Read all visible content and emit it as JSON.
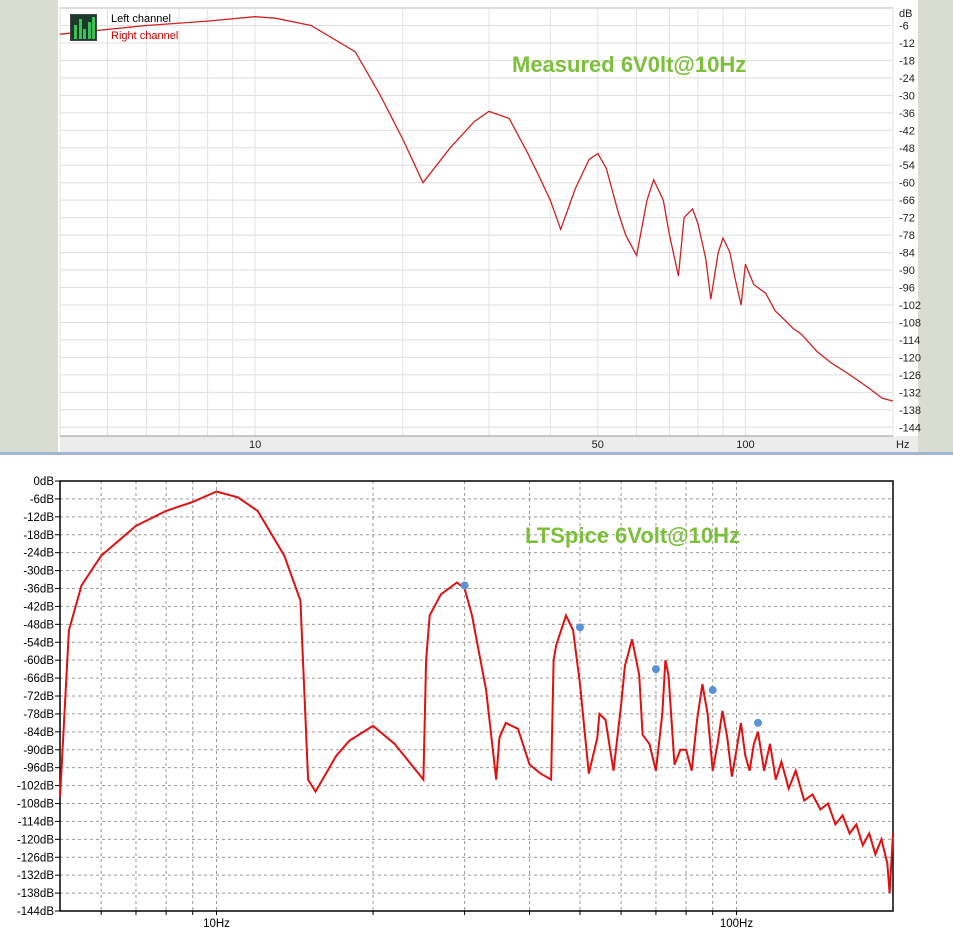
{
  "chart_data": [
    {
      "type": "line",
      "title": "Measured 6V0lt@10Hz",
      "legend": [
        "Left channel",
        "Right channel"
      ],
      "legend_colors": [
        "#000000",
        "#cc0000"
      ],
      "series_color": "#cc2222",
      "unit_y": "dB",
      "unit_x": "Hz",
      "x_scale": "log",
      "xlim": [
        4,
        200
      ],
      "ylim": [
        -147,
        0
      ],
      "x_tick_labels": [
        "10",
        "50",
        "100"
      ],
      "y_tick_labels": [
        "-6",
        "-12",
        "-18",
        "-24",
        "-30",
        "-36",
        "-42",
        "-48",
        "-54",
        "-60",
        "-66",
        "-72",
        "-78",
        "-84",
        "-90",
        "-96",
        "-102",
        "-108",
        "-114",
        "-120",
        "-126",
        "-132",
        "-138",
        "-144"
      ],
      "grid": true,
      "series": [
        {
          "name": "Right channel",
          "x": [
            4,
            6,
            8,
            10,
            11,
            13,
            16,
            18,
            20,
            22,
            25,
            28,
            30,
            33,
            36,
            38,
            40,
            42,
            45,
            48,
            50,
            52,
            55,
            57,
            60,
            63,
            65,
            68,
            70,
            73,
            75,
            78,
            80,
            83,
            85,
            88,
            90,
            93,
            95,
            98,
            100,
            104,
            110,
            115,
            120,
            125,
            130,
            140,
            150,
            160,
            170,
            180,
            190,
            200
          ],
          "y": [
            -9,
            -6,
            -4.5,
            -3,
            -3.5,
            -6,
            -15,
            -30,
            -45,
            -60,
            -48,
            -39,
            -35.5,
            -38,
            -50,
            -58,
            -66,
            -76,
            -62,
            -52,
            -50,
            -55,
            -70,
            -78,
            -85,
            -66,
            -59,
            -66,
            -78,
            -92,
            -72,
            -69,
            -74,
            -86,
            -100,
            -84,
            -79,
            -84,
            -92,
            -102,
            -88,
            -95,
            -98,
            -104,
            -107,
            -110,
            -112,
            -118,
            -122,
            -125,
            -128,
            -131,
            -134,
            -135
          ]
        }
      ]
    },
    {
      "type": "line",
      "title": "LTSpice 6Volt@10Hz",
      "series_color": "#e01010",
      "marker_color": "#5b94d6",
      "x_scale": "log",
      "xlim": [
        5,
        200
      ],
      "ylim": [
        -144,
        0
      ],
      "x_tick_labels": [
        "10Hz",
        "100Hz"
      ],
      "y_tick_labels": [
        "0dB",
        "-6dB",
        "-12dB",
        "-18dB",
        "-24dB",
        "-30dB",
        "-36dB",
        "-42dB",
        "-48dB",
        "-54dB",
        "-60dB",
        "-66dB",
        "-72dB",
        "-78dB",
        "-84dB",
        "-90dB",
        "-96dB",
        "-102dB",
        "-108dB",
        "-114dB",
        "-120dB",
        "-126dB",
        "-132dB",
        "-138dB",
        "-144dB"
      ],
      "grid": true,
      "series": [
        {
          "x": [
            5,
            5.2,
            5.5,
            6,
            7,
            8,
            9,
            10,
            11,
            12,
            13.5,
            14.5,
            15,
            15.5,
            17,
            18,
            20,
            22,
            25,
            25.3,
            25.7,
            27,
            29,
            30,
            31,
            33,
            34.5,
            35,
            36,
            38,
            40,
            42,
            44,
            44.5,
            45,
            47,
            48.5,
            50,
            52,
            54,
            54.5,
            56,
            58,
            60,
            61,
            63,
            65,
            66,
            68,
            70,
            72,
            73,
            74,
            76,
            78,
            80,
            82,
            84,
            86,
            88,
            90,
            92,
            94,
            96,
            98,
            100,
            102,
            104,
            106,
            108,
            110,
            113,
            116,
            119,
            122,
            126,
            130,
            135,
            140,
            145,
            150,
            155,
            160,
            165,
            170,
            175,
            180,
            185,
            190,
            195,
            197,
            200
          ],
          "y": [
            -106,
            -50,
            -35,
            -25,
            -15,
            -10,
            -7,
            -3.5,
            -5.5,
            -10,
            -25,
            -40,
            -100,
            -104,
            -92,
            -87,
            -82,
            -88,
            -100,
            -60,
            -45,
            -38,
            -34,
            -36,
            -45,
            -70,
            -100,
            -86,
            -81,
            -83,
            -95,
            -98,
            -100,
            -60,
            -55,
            -45,
            -50,
            -68,
            -98,
            -86,
            -78,
            -80,
            -97,
            -75,
            -62,
            -53,
            -65,
            -85,
            -88,
            -97,
            -78,
            -60,
            -65,
            -95,
            -90,
            -90,
            -97,
            -80,
            -68,
            -78,
            -97,
            -88,
            -77,
            -86,
            -99,
            -90,
            -81,
            -92,
            -97,
            -88,
            -84,
            -97,
            -88,
            -100,
            -94,
            -103,
            -97,
            -107,
            -105,
            -110,
            -108,
            -115,
            -112,
            -118,
            -115,
            -122,
            -118,
            -125,
            -120,
            -128,
            -138,
            -118
          ]
        }
      ],
      "markers": [
        {
          "x": 30,
          "y": -35
        },
        {
          "x": 50,
          "y": -49
        },
        {
          "x": 70,
          "y": -63
        },
        {
          "x": 90,
          "y": -70
        },
        {
          "x": 110,
          "y": -81
        }
      ]
    }
  ]
}
